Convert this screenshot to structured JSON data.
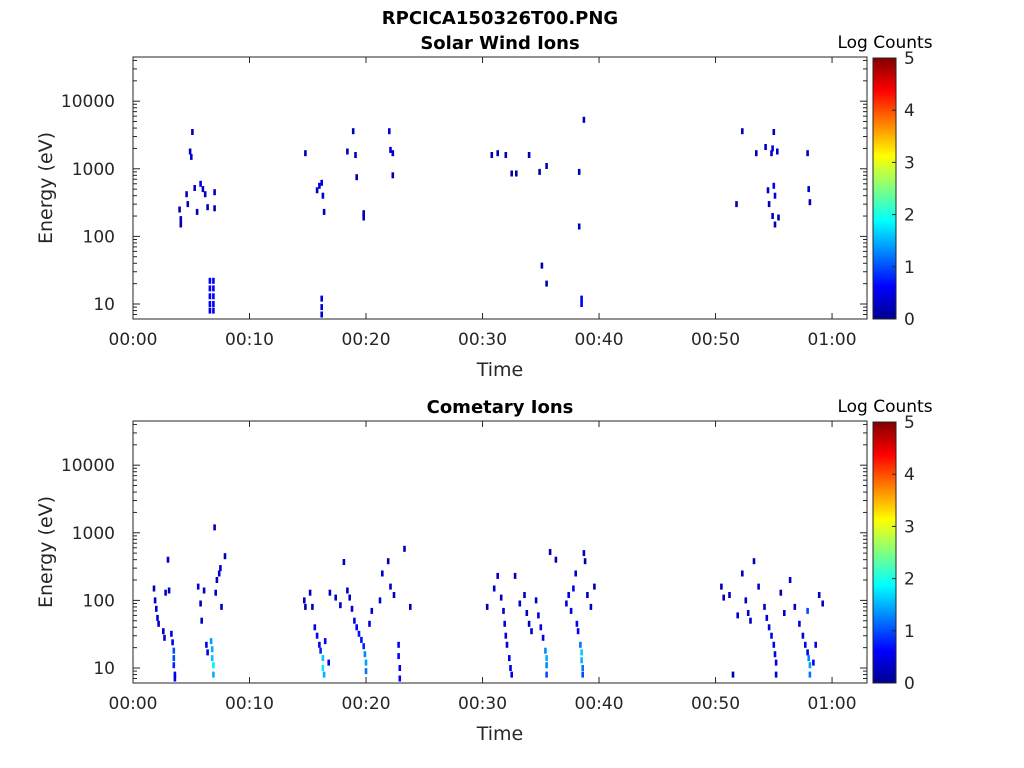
{
  "figure": {
    "title": "RPCICA150326T00.PNG",
    "colormap": [
      "#00008f",
      "#0000ff",
      "#0080ff",
      "#00ffff",
      "#80ff80",
      "#ffff00",
      "#ff8000",
      "#ff0000",
      "#800000"
    ]
  },
  "chart_data": [
    {
      "type": "heatmap",
      "title": "Solar Wind Ions",
      "xlabel": "Time",
      "ylabel": "Energy (eV)",
      "x_unit": "minutes",
      "xlim": [
        0,
        63
      ],
      "x_ticks": [
        0,
        10,
        20,
        30,
        40,
        50,
        60
      ],
      "x_tick_labels": [
        "00:00",
        "00:10",
        "00:20",
        "00:30",
        "00:40",
        "00:50",
        "01:00"
      ],
      "y_scale": "log",
      "ylim": [
        6,
        45000
      ],
      "y_ticks": [
        10,
        100,
        1000,
        10000
      ],
      "y_tick_labels": [
        "10",
        "100",
        "1000",
        "10000"
      ],
      "colorbar": {
        "label": "Log Counts",
        "range": [
          0,
          5
        ],
        "ticks": [
          "0",
          "1",
          "2",
          "3",
          "4",
          "5"
        ]
      },
      "cells": [
        [
          4.0,
          250,
          0.2
        ],
        [
          4.1,
          180,
          0.3
        ],
        [
          4.1,
          150,
          0.2
        ],
        [
          4.6,
          420,
          0.3
        ],
        [
          4.7,
          300,
          0.2
        ],
        [
          4.9,
          1800,
          0.3
        ],
        [
          5.0,
          1500,
          0.4
        ],
        [
          5.1,
          3500,
          0.3
        ],
        [
          5.3,
          520,
          0.3
        ],
        [
          5.5,
          230,
          0.2
        ],
        [
          5.8,
          600,
          0.4
        ],
        [
          6.0,
          500,
          0.3
        ],
        [
          6.2,
          420,
          0.3
        ],
        [
          6.4,
          270,
          0.2
        ],
        [
          6.6,
          22,
          0.6
        ],
        [
          6.6,
          17,
          0.6
        ],
        [
          6.6,
          13,
          0.6
        ],
        [
          6.6,
          10,
          0.6
        ],
        [
          6.6,
          8,
          0.5
        ],
        [
          6.9,
          22,
          0.6
        ],
        [
          6.9,
          17,
          0.6
        ],
        [
          6.9,
          13,
          0.6
        ],
        [
          6.9,
          10,
          0.6
        ],
        [
          6.9,
          8,
          0.5
        ],
        [
          7.0,
          450,
          0.3
        ],
        [
          7.0,
          260,
          0.2
        ],
        [
          14.8,
          1700,
          0.2
        ],
        [
          15.8,
          480,
          0.3
        ],
        [
          16.0,
          560,
          0.4
        ],
        [
          16.2,
          620,
          0.4
        ],
        [
          16.3,
          400,
          0.3
        ],
        [
          16.2,
          12,
          0.4
        ],
        [
          16.2,
          9,
          0.4
        ],
        [
          16.2,
          7,
          0.4
        ],
        [
          16.4,
          230,
          0.2
        ],
        [
          18.4,
          1800,
          0.2
        ],
        [
          18.9,
          3600,
          0.2
        ],
        [
          19.1,
          1600,
          0.3
        ],
        [
          19.2,
          750,
          0.2
        ],
        [
          19.8,
          220,
          0.2
        ],
        [
          19.8,
          190,
          0.2
        ],
        [
          22.0,
          3600,
          0.4
        ],
        [
          22.1,
          1900,
          0.4
        ],
        [
          22.3,
          1700,
          0.3
        ],
        [
          22.3,
          800,
          0.2
        ],
        [
          30.8,
          1600,
          0.2
        ],
        [
          31.3,
          1700,
          0.2
        ],
        [
          32.0,
          1600,
          0.2
        ],
        [
          32.5,
          850,
          0.2
        ],
        [
          32.9,
          850,
          0.2
        ],
        [
          34.0,
          1600,
          0.2
        ],
        [
          34.9,
          900,
          0.2
        ],
        [
          35.1,
          37,
          0.2
        ],
        [
          35.5,
          20,
          0.2
        ],
        [
          35.5,
          1100,
          0.2
        ],
        [
          38.3,
          140,
          0.2
        ],
        [
          38.3,
          900,
          0.2
        ],
        [
          38.5,
          12,
          0.6
        ],
        [
          38.5,
          10,
          0.6
        ],
        [
          38.7,
          5300,
          0.2
        ],
        [
          51.8,
          300,
          0.2
        ],
        [
          52.3,
          3600,
          0.2
        ],
        [
          53.5,
          1700,
          0.2
        ],
        [
          54.3,
          2100,
          0.3
        ],
        [
          54.5,
          480,
          0.3
        ],
        [
          54.6,
          300,
          0.2
        ],
        [
          54.8,
          1700,
          0.4
        ],
        [
          54.9,
          2000,
          0.5
        ],
        [
          55.0,
          3500,
          0.3
        ],
        [
          55.0,
          560,
          0.5
        ],
        [
          55.1,
          400,
          0.4
        ],
        [
          54.9,
          200,
          0.3
        ],
        [
          55.1,
          150,
          0.2
        ],
        [
          55.4,
          190,
          0.2
        ],
        [
          55.3,
          1800,
          0.3
        ],
        [
          57.9,
          1700,
          0.3
        ],
        [
          58.0,
          500,
          0.3
        ],
        [
          58.1,
          320,
          0.2
        ]
      ]
    },
    {
      "type": "heatmap",
      "title": "Cometary Ions",
      "xlabel": "Time",
      "ylabel": "Energy (eV)",
      "x_unit": "minutes",
      "xlim": [
        0,
        63
      ],
      "x_ticks": [
        0,
        10,
        20,
        30,
        40,
        50,
        60
      ],
      "x_tick_labels": [
        "00:00",
        "00:10",
        "00:20",
        "00:30",
        "00:40",
        "00:50",
        "01:00"
      ],
      "y_scale": "log",
      "ylim": [
        6,
        45000
      ],
      "y_ticks": [
        10,
        100,
        1000,
        10000
      ],
      "y_tick_labels": [
        "10",
        "100",
        "1000",
        "10000"
      ],
      "colorbar": {
        "label": "Log Counts",
        "range": [
          0,
          5
        ],
        "ticks": [
          "0",
          "1",
          "2",
          "3",
          "4",
          "5"
        ]
      },
      "cells": [
        [
          1.8,
          150,
          0.2
        ],
        [
          1.9,
          100,
          0.3
        ],
        [
          2.0,
          75,
          0.4
        ],
        [
          2.1,
          55,
          0.4
        ],
        [
          2.2,
          45,
          0.3
        ],
        [
          2.6,
          35,
          0.3
        ],
        [
          2.7,
          28,
          0.4
        ],
        [
          2.8,
          130,
          0.3
        ],
        [
          3.0,
          400,
          0.3
        ],
        [
          3.1,
          140,
          0.3
        ],
        [
          3.3,
          32,
          0.5
        ],
        [
          3.4,
          24,
          0.6
        ],
        [
          3.5,
          18,
          1.0
        ],
        [
          3.5,
          14,
          1.0
        ],
        [
          3.5,
          11,
          0.8
        ],
        [
          3.6,
          8,
          0.6
        ],
        [
          3.6,
          7,
          0.5
        ],
        [
          5.6,
          160,
          0.3
        ],
        [
          5.8,
          90,
          0.3
        ],
        [
          5.9,
          50,
          0.3
        ],
        [
          6.1,
          140,
          0.3
        ],
        [
          6.3,
          22,
          0.5
        ],
        [
          6.4,
          17,
          0.5
        ],
        [
          6.7,
          25,
          1.4
        ],
        [
          6.8,
          19,
          1.5
        ],
        [
          6.8,
          14,
          1.6
        ],
        [
          6.9,
          11,
          1.8
        ],
        [
          6.9,
          8,
          1.5
        ],
        [
          7.0,
          1200,
          0.2
        ],
        [
          7.1,
          130,
          0.3
        ],
        [
          7.2,
          200,
          0.3
        ],
        [
          7.4,
          250,
          0.3
        ],
        [
          7.5,
          300,
          0.3
        ],
        [
          7.6,
          80,
          0.2
        ],
        [
          7.9,
          450,
          0.2
        ],
        [
          14.7,
          100,
          0.2
        ],
        [
          14.8,
          80,
          0.2
        ],
        [
          15.2,
          130,
          0.3
        ],
        [
          15.4,
          80,
          0.3
        ],
        [
          15.6,
          40,
          0.5
        ],
        [
          15.8,
          30,
          0.6
        ],
        [
          16.0,
          22,
          0.6
        ],
        [
          16.1,
          18,
          0.8
        ],
        [
          16.3,
          14,
          1.6
        ],
        [
          16.3,
          10,
          1.8
        ],
        [
          16.4,
          8,
          1.5
        ],
        [
          16.5,
          25,
          0.6
        ],
        [
          16.8,
          12,
          0.5
        ],
        [
          16.9,
          130,
          0.3
        ],
        [
          17.4,
          110,
          0.3
        ],
        [
          17.8,
          85,
          0.3
        ],
        [
          18.1,
          370,
          0.2
        ],
        [
          18.4,
          140,
          0.3
        ],
        [
          18.6,
          110,
          0.3
        ],
        [
          18.8,
          75,
          0.4
        ],
        [
          19.0,
          50,
          0.5
        ],
        [
          19.2,
          40,
          0.6
        ],
        [
          19.4,
          32,
          0.7
        ],
        [
          19.6,
          26,
          0.7
        ],
        [
          19.8,
          21,
          0.8
        ],
        [
          19.9,
          16,
          1.3
        ],
        [
          20.0,
          12,
          1.4
        ],
        [
          20.0,
          9,
          1.2
        ],
        [
          20.3,
          45,
          0.4
        ],
        [
          20.5,
          70,
          0.3
        ],
        [
          21.2,
          100,
          0.4
        ],
        [
          21.4,
          250,
          0.3
        ],
        [
          21.9,
          380,
          0.2
        ],
        [
          22.1,
          160,
          0.3
        ],
        [
          22.4,
          120,
          0.3
        ],
        [
          22.8,
          22,
          0.6
        ],
        [
          22.8,
          15,
          0.6
        ],
        [
          22.9,
          10,
          0.6
        ],
        [
          22.9,
          7,
          0.6
        ],
        [
          23.3,
          580,
          0.2
        ],
        [
          23.8,
          80,
          0.2
        ],
        [
          30.4,
          80,
          0.2
        ],
        [
          31.0,
          150,
          0.3
        ],
        [
          31.3,
          230,
          0.3
        ],
        [
          31.6,
          110,
          0.3
        ],
        [
          31.8,
          70,
          0.3
        ],
        [
          31.9,
          45,
          0.4
        ],
        [
          32.0,
          30,
          0.4
        ],
        [
          32.1,
          22,
          0.4
        ],
        [
          32.3,
          14,
          0.5
        ],
        [
          32.4,
          10,
          0.5
        ],
        [
          32.5,
          8,
          0.5
        ],
        [
          32.8,
          230,
          0.3
        ],
        [
          33.2,
          90,
          0.3
        ],
        [
          33.6,
          120,
          0.3
        ],
        [
          33.8,
          65,
          0.3
        ],
        [
          34.0,
          45,
          0.3
        ],
        [
          34.2,
          35,
          0.3
        ],
        [
          34.6,
          100,
          0.3
        ],
        [
          34.8,
          60,
          0.4
        ],
        [
          35.0,
          40,
          0.4
        ],
        [
          35.2,
          28,
          0.5
        ],
        [
          35.4,
          18,
          1.3
        ],
        [
          35.5,
          14,
          1.5
        ],
        [
          35.5,
          11,
          1.3
        ],
        [
          35.5,
          8,
          1.0
        ],
        [
          35.8,
          520,
          0.2
        ],
        [
          36.3,
          400,
          0.2
        ],
        [
          37.2,
          90,
          0.4
        ],
        [
          37.4,
          120,
          0.4
        ],
        [
          37.6,
          70,
          0.4
        ],
        [
          37.8,
          150,
          0.5
        ],
        [
          38.0,
          250,
          0.4
        ],
        [
          38.1,
          45,
          0.6
        ],
        [
          38.2,
          35,
          0.6
        ],
        [
          38.4,
          22,
          1.2
        ],
        [
          38.5,
          17,
          1.6
        ],
        [
          38.5,
          13,
          1.5
        ],
        [
          38.6,
          10,
          1.2
        ],
        [
          38.6,
          8,
          1.0
        ],
        [
          38.7,
          500,
          0.3
        ],
        [
          38.8,
          380,
          0.2
        ],
        [
          39.0,
          120,
          0.3
        ],
        [
          39.3,
          80,
          0.3
        ],
        [
          39.6,
          160,
          0.2
        ],
        [
          50.5,
          160,
          0.2
        ],
        [
          50.7,
          110,
          0.3
        ],
        [
          51.2,
          120,
          0.3
        ],
        [
          51.5,
          8,
          0.2
        ],
        [
          51.9,
          60,
          0.3
        ],
        [
          52.3,
          250,
          0.3
        ],
        [
          52.6,
          100,
          0.3
        ],
        [
          52.8,
          65,
          0.4
        ],
        [
          53.0,
          50,
          0.3
        ],
        [
          53.3,
          380,
          0.2
        ],
        [
          53.7,
          160,
          0.3
        ],
        [
          54.2,
          80,
          0.3
        ],
        [
          54.4,
          55,
          0.4
        ],
        [
          54.6,
          40,
          0.4
        ],
        [
          54.8,
          30,
          0.5
        ],
        [
          55.0,
          22,
          0.6
        ],
        [
          55.1,
          16,
          0.6
        ],
        [
          55.2,
          12,
          0.5
        ],
        [
          55.2,
          8,
          0.4
        ],
        [
          55.6,
          130,
          0.2
        ],
        [
          55.9,
          65,
          0.3
        ],
        [
          56.4,
          200,
          0.3
        ],
        [
          56.8,
          80,
          0.3
        ],
        [
          57.2,
          45,
          0.4
        ],
        [
          57.5,
          30,
          0.4
        ],
        [
          57.7,
          22,
          0.5
        ],
        [
          57.9,
          17,
          0.6
        ],
        [
          57.9,
          70,
          1.0
        ],
        [
          58.0,
          14,
          1.3
        ],
        [
          58.1,
          11,
          1.4
        ],
        [
          58.1,
          8,
          1.2
        ],
        [
          58.4,
          12,
          0.6
        ],
        [
          58.6,
          22,
          0.5
        ],
        [
          58.9,
          120,
          0.3
        ],
        [
          59.2,
          90,
          0.3
        ]
      ]
    }
  ]
}
